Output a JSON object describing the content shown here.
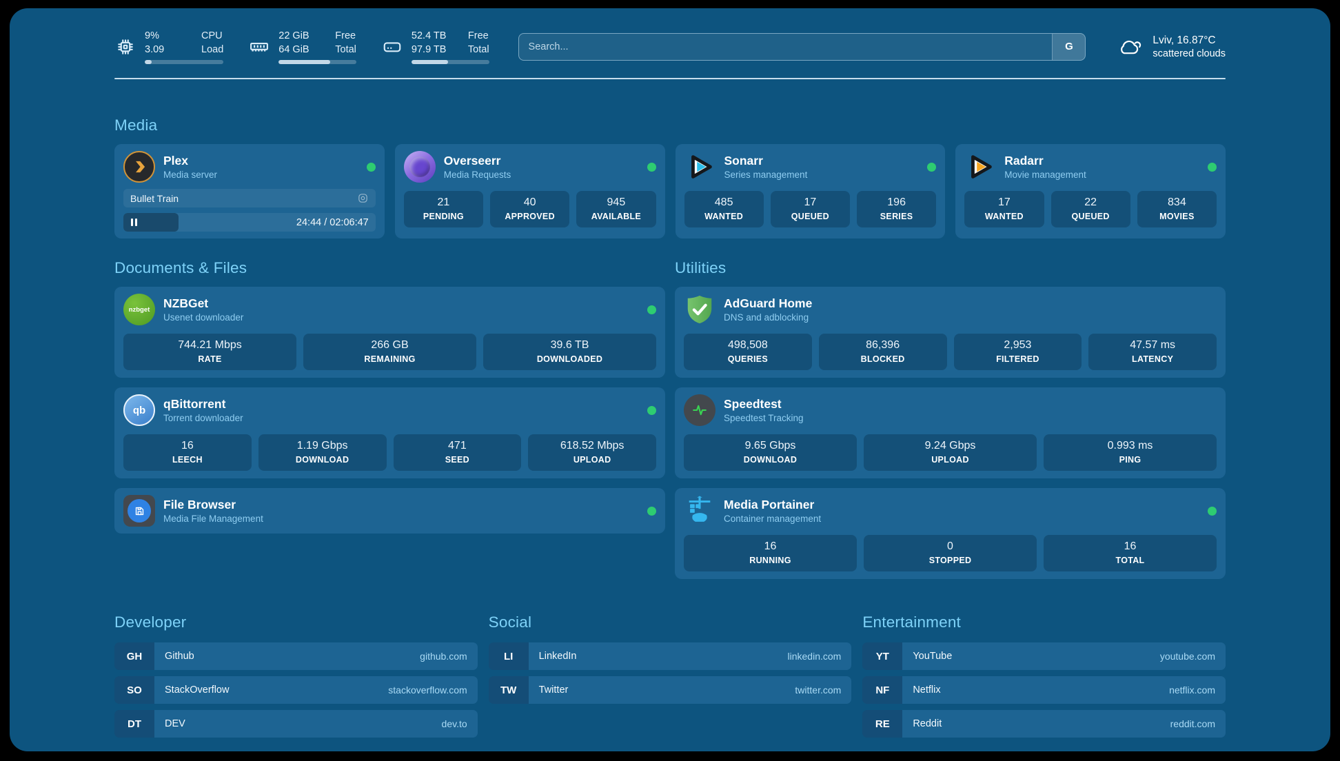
{
  "colors": {
    "status_green": "#2ecc71",
    "accent_blue": "#7ed2f8"
  },
  "header": {
    "stats": [
      {
        "value_top": "9%",
        "value_bottom": "3.09",
        "label_top": "CPU",
        "label_bottom": "Load",
        "progress_pct": 9
      },
      {
        "value_top": "22 GiB",
        "value_bottom": "64 GiB",
        "label_top": "Free",
        "label_bottom": "Total",
        "progress_pct": 66
      },
      {
        "value_top": "52.4 TB",
        "value_bottom": "97.9 TB",
        "label_top": "Free",
        "label_bottom": "Total",
        "progress_pct": 47
      }
    ],
    "search": {
      "placeholder": "Search...",
      "button_label": "G"
    },
    "weather": {
      "line1": "Lviv, 16.87°C",
      "line2": "scattered clouds"
    }
  },
  "media": {
    "title": "Media",
    "plex": {
      "name": "Plex",
      "subtitle": "Media server",
      "now_playing": "Bullet Train",
      "time": "24:44 / 02:06:47",
      "progress_pct": 19
    },
    "overseerr": {
      "name": "Overseerr",
      "subtitle": "Media Requests",
      "stats": [
        {
          "value": "21",
          "label": "PENDING"
        },
        {
          "value": "40",
          "label": "APPROVED"
        },
        {
          "value": "945",
          "label": "AVAILABLE"
        }
      ]
    },
    "sonarr": {
      "name": "Sonarr",
      "subtitle": "Series management",
      "stats": [
        {
          "value": "485",
          "label": "WANTED"
        },
        {
          "value": "17",
          "label": "QUEUED"
        },
        {
          "value": "196",
          "label": "SERIES"
        }
      ]
    },
    "radarr": {
      "name": "Radarr",
      "subtitle": "Movie management",
      "stats": [
        {
          "value": "17",
          "label": "WANTED"
        },
        {
          "value": "22",
          "label": "QUEUED"
        },
        {
          "value": "834",
          "label": "MOVIES"
        }
      ]
    }
  },
  "documents": {
    "title": "Documents & Files",
    "nzbget": {
      "name": "NZBGet",
      "subtitle": "Usenet downloader",
      "icon_text": "nzbget",
      "stats": [
        {
          "value": "744.21 Mbps",
          "label": "RATE"
        },
        {
          "value": "266 GB",
          "label": "REMAINING"
        },
        {
          "value": "39.6 TB",
          "label": "DOWNLOADED"
        }
      ]
    },
    "qbittorrent": {
      "name": "qBittorrent",
      "subtitle": "Torrent downloader",
      "icon_text": "qb",
      "stats": [
        {
          "value": "16",
          "label": "LEECH"
        },
        {
          "value": "1.19 Gbps",
          "label": "DOWNLOAD"
        },
        {
          "value": "471",
          "label": "SEED"
        },
        {
          "value": "618.52 Mbps",
          "label": "UPLOAD"
        }
      ]
    },
    "filebrowser": {
      "name": "File Browser",
      "subtitle": "Media File Management"
    }
  },
  "utilities": {
    "title": "Utilities",
    "adguard": {
      "name": "AdGuard Home",
      "subtitle": "DNS and adblocking",
      "stats": [
        {
          "value": "498,508",
          "label": "QUERIES"
        },
        {
          "value": "86,396",
          "label": "BLOCKED"
        },
        {
          "value": "2,953",
          "label": "FILTERED"
        },
        {
          "value": "47.57 ms",
          "label": "LATENCY"
        }
      ]
    },
    "speedtest": {
      "name": "Speedtest",
      "subtitle": "Speedtest Tracking",
      "stats": [
        {
          "value": "9.65 Gbps",
          "label": "DOWNLOAD"
        },
        {
          "value": "9.24 Gbps",
          "label": "UPLOAD"
        },
        {
          "value": "0.993 ms",
          "label": "PING"
        }
      ]
    },
    "portainer": {
      "name": "Media Portainer",
      "subtitle": "Container management",
      "stats": [
        {
          "value": "16",
          "label": "RUNNING"
        },
        {
          "value": "0",
          "label": "STOPPED"
        },
        {
          "value": "16",
          "label": "TOTAL"
        }
      ]
    }
  },
  "bookmarks": [
    {
      "title": "Developer",
      "items": [
        {
          "abbr": "GH",
          "name": "Github",
          "url": "github.com"
        },
        {
          "abbr": "SO",
          "name": "StackOverflow",
          "url": "stackoverflow.com"
        },
        {
          "abbr": "DT",
          "name": "DEV",
          "url": "dev.to"
        }
      ]
    },
    {
      "title": "Social",
      "items": [
        {
          "abbr": "LI",
          "name": "LinkedIn",
          "url": "linkedin.com"
        },
        {
          "abbr": "TW",
          "name": "Twitter",
          "url": "twitter.com"
        }
      ]
    },
    {
      "title": "Entertainment",
      "items": [
        {
          "abbr": "YT",
          "name": "YouTube",
          "url": "youtube.com"
        },
        {
          "abbr": "NF",
          "name": "Netflix",
          "url": "netflix.com"
        },
        {
          "abbr": "RE",
          "name": "Reddit",
          "url": "reddit.com"
        }
      ]
    }
  ]
}
